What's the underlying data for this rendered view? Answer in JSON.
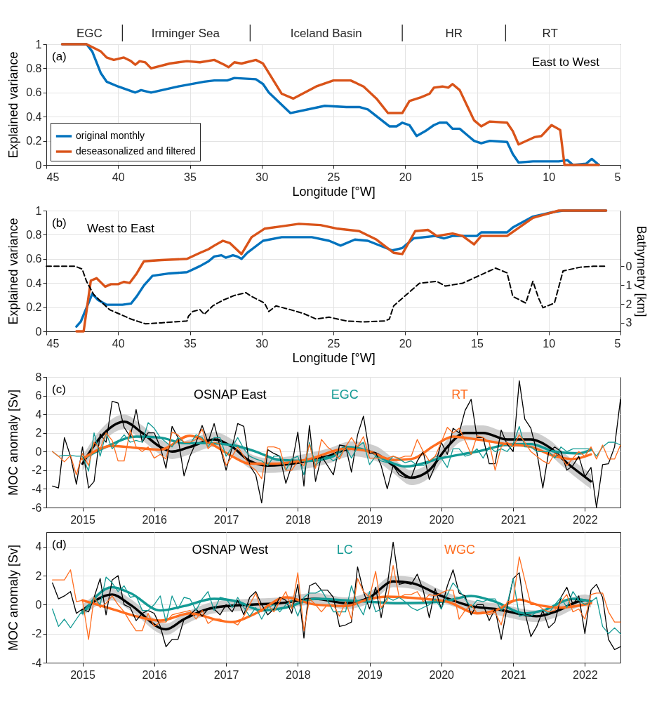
{
  "chart_data": [
    {
      "type": "line",
      "xlabel": "Longitude [°W]",
      "ylabel": "Explained variance",
      "xlim": [
        45,
        5
      ],
      "xticks": [
        45,
        40,
        35,
        30,
        25,
        20,
        15,
        10,
        5
      ],
      "ylim": [
        0,
        1
      ],
      "yticks": [
        0,
        0.2,
        0.4,
        0.6,
        0.8,
        1
      ],
      "grid": true,
      "legend": "bottom left",
      "annotations": [
        "(a)",
        "East to West",
        "EGC",
        "Irminger Sea",
        "Iceland Basin",
        "HR",
        "RT"
      ],
      "series": [
        {
          "name": "original monthly",
          "color": "#0072bd",
          "x": [
            43.9,
            42.2,
            41.8,
            41.2,
            40.8,
            40.0,
            38.8,
            38.4,
            37.7,
            35.8,
            34.0,
            33.3,
            32.4,
            31.9,
            30.4,
            29.9,
            29.5,
            28.0,
            25.6,
            24.1,
            23.2,
            22.6,
            21.1,
            20.6,
            20.2,
            19.7,
            19.2,
            18.6,
            18.0,
            17.6,
            17.1,
            16.7,
            16.2,
            15.6,
            15.2,
            14.7,
            14.1,
            12.9,
            12.5,
            12.1,
            11.1,
            9.9,
            9.3,
            8.7,
            8.3,
            7.4,
            7.0,
            6.5
          ],
          "values": [
            1.0,
            1.0,
            0.94,
            0.76,
            0.69,
            0.65,
            0.6,
            0.62,
            0.6,
            0.65,
            0.69,
            0.7,
            0.7,
            0.72,
            0.71,
            0.67,
            0.6,
            0.43,
            0.49,
            0.48,
            0.48,
            0.46,
            0.32,
            0.32,
            0.35,
            0.33,
            0.24,
            0.28,
            0.33,
            0.35,
            0.35,
            0.3,
            0.3,
            0.24,
            0.2,
            0.18,
            0.2,
            0.19,
            0.09,
            0.02,
            0.03,
            0.03,
            0.03,
            0.04,
            0.0,
            0.01,
            0.05,
            0.0
          ]
        },
        {
          "name": "deseasonalized and filtered",
          "color": "#d95319",
          "x": [
            43.9,
            42.2,
            41.2,
            40.8,
            40.3,
            39.6,
            39.1,
            38.8,
            38.5,
            38.1,
            37.7,
            36.4,
            35.2,
            34.3,
            33.3,
            32.6,
            32.3,
            31.9,
            31.4,
            30.4,
            29.9,
            28.6,
            27.8,
            26.2,
            25.0,
            23.8,
            22.9,
            22.0,
            21.2,
            20.2,
            19.7,
            18.9,
            18.3,
            18.0,
            17.4,
            17.0,
            16.7,
            16.2,
            15.6,
            15.2,
            14.7,
            14.1,
            12.9,
            12.5,
            12.1,
            11.0,
            10.5,
            9.8,
            9.2,
            8.9,
            6.5
          ],
          "values": [
            1.0,
            1.0,
            0.94,
            0.89,
            0.87,
            0.89,
            0.86,
            0.83,
            0.86,
            0.85,
            0.8,
            0.84,
            0.86,
            0.85,
            0.87,
            0.83,
            0.81,
            0.85,
            0.84,
            0.87,
            0.84,
            0.59,
            0.55,
            0.65,
            0.7,
            0.7,
            0.65,
            0.55,
            0.43,
            0.43,
            0.53,
            0.56,
            0.59,
            0.64,
            0.65,
            0.64,
            0.67,
            0.62,
            0.47,
            0.37,
            0.32,
            0.36,
            0.35,
            0.28,
            0.17,
            0.23,
            0.24,
            0.33,
            0.29,
            0.0,
            0.0
          ]
        }
      ]
    },
    {
      "type": "line",
      "xlabel": "Longitude [°W]",
      "ylabel": "Explained variance",
      "y2label": "Bathymetry [km]",
      "xlim": [
        45,
        5
      ],
      "xticks": [
        45,
        40,
        35,
        30,
        25,
        20,
        15,
        10,
        5
      ],
      "ylim": [
        0,
        1
      ],
      "yticks": [
        0,
        0.2,
        0.4,
        0.6,
        0.8,
        1
      ],
      "y2lim": [
        3.45,
        -2.95
      ],
      "y2ticks": [
        0,
        1,
        2,
        3
      ],
      "grid": true,
      "annotations": [
        "(b)",
        "West to East"
      ],
      "series": [
        {
          "color": "#0072bd",
          "x": [
            42.9,
            42.6,
            41.8,
            41.4,
            40.8,
            39.7,
            39.1,
            38.7,
            38.2,
            37.6,
            36.4,
            35.2,
            34.3,
            33.7,
            33.3,
            32.8,
            32.5,
            32.0,
            31.7,
            31.4,
            31.0,
            29.9,
            28.6,
            26.5,
            25.3,
            24.5,
            23.5,
            22.6,
            20.9,
            20.2,
            19.4,
            17.9,
            17.3,
            16.7,
            15.0,
            14.7,
            12.9,
            12.5,
            11.1,
            9.6,
            9.0,
            6.0
          ],
          "values": [
            0.04,
            0.08,
            0.31,
            0.26,
            0.22,
            0.22,
            0.23,
            0.29,
            0.38,
            0.46,
            0.48,
            0.49,
            0.54,
            0.58,
            0.62,
            0.63,
            0.61,
            0.63,
            0.62,
            0.6,
            0.65,
            0.75,
            0.78,
            0.78,
            0.75,
            0.71,
            0.76,
            0.75,
            0.67,
            0.69,
            0.77,
            0.79,
            0.77,
            0.79,
            0.79,
            0.82,
            0.82,
            0.86,
            0.95,
            0.99,
            1.0,
            1.0
          ]
        },
        {
          "color": "#d95319",
          "x": [
            42.9,
            42.4,
            41.9,
            41.5,
            40.9,
            40.5,
            40.0,
            39.6,
            39.2,
            38.7,
            38.2,
            37.0,
            35.2,
            34.3,
            33.7,
            33.3,
            32.7,
            32.2,
            31.4,
            30.7,
            29.8,
            28.6,
            27.4,
            25.9,
            24.7,
            23.2,
            22.0,
            20.8,
            20.2,
            19.3,
            18.4,
            17.8,
            16.7,
            16.0,
            15.2,
            14.7,
            12.9,
            11.1,
            9.3,
            6.0
          ],
          "values": [
            0.0,
            0.0,
            0.42,
            0.44,
            0.37,
            0.39,
            0.39,
            0.41,
            0.4,
            0.48,
            0.58,
            0.59,
            0.6,
            0.65,
            0.68,
            0.71,
            0.75,
            0.73,
            0.64,
            0.78,
            0.85,
            0.87,
            0.89,
            0.88,
            0.85,
            0.83,
            0.76,
            0.65,
            0.64,
            0.83,
            0.84,
            0.79,
            0.81,
            0.79,
            0.72,
            0.79,
            0.79,
            0.94,
            1.0,
            1.0
          ]
        },
        {
          "color": "#000000",
          "axis": "y2",
          "line_style": "dashed",
          "x": [
            45,
            43.0,
            42.5,
            42.2,
            41.7,
            40.6,
            39.1,
            38.1,
            37.0,
            35.2,
            35.1,
            34.8,
            34.3,
            34.0,
            33.4,
            32.7,
            31.9,
            31.1,
            30.7,
            29.8,
            29.5,
            29.0,
            28.0,
            27.1,
            26.2,
            25.3,
            24.1,
            22.9,
            21.4,
            21.1,
            20.8,
            19.9,
            19.0,
            17.8,
            17.2,
            16.0,
            14.7,
            13.7,
            12.9,
            12.5,
            11.6,
            11.1,
            10.7,
            10.4,
            9.6,
            9.0,
            7.8,
            6.9,
            6.0
          ],
          "values": [
            0.0,
            0.0,
            0.15,
            0.8,
            1.5,
            2.3,
            2.8,
            3.05,
            3.0,
            2.9,
            2.65,
            2.4,
            2.3,
            2.55,
            2.1,
            1.8,
            1.55,
            1.4,
            1.6,
            1.95,
            2.4,
            2.1,
            2.3,
            2.5,
            2.8,
            2.7,
            2.9,
            2.95,
            2.9,
            2.8,
            2.1,
            1.5,
            0.9,
            0.8,
            1.05,
            0.9,
            0.45,
            0.1,
            0.35,
            1.6,
            1.95,
            0.8,
            1.7,
            2.2,
            1.95,
            0.25,
            0.05,
            0.0,
            0.0
          ]
        }
      ]
    },
    {
      "type": "line",
      "ylabel": "MOC anomaly [Sv]",
      "xlim": [
        "2014-07",
        "2022-07"
      ],
      "xticks": [
        "2015",
        "2016",
        "2017",
        "2018",
        "2019",
        "2020",
        "2021",
        "2022"
      ],
      "ylim": [
        -6,
        8
      ],
      "yticks": [
        -6,
        -4,
        -2,
        0,
        2,
        4,
        6,
        8
      ],
      "grid": true,
      "annotations": [
        "(c)"
      ],
      "x": [
        "2014-08",
        "2014-09",
        "2014-10",
        "2014-11",
        "2014-12",
        "2015-01",
        "2015-02",
        "2015-03",
        "2015-04",
        "2015-05",
        "2015-06",
        "2015-07",
        "2015-08",
        "2015-09",
        "2015-10",
        "2015-11",
        "2015-12",
        "2016-01",
        "2016-02",
        "2016-03",
        "2016-04",
        "2016-05",
        "2016-06",
        "2016-07",
        "2016-08",
        "2016-09",
        "2016-10",
        "2016-11",
        "2016-12",
        "2017-01",
        "2017-02",
        "2017-03",
        "2017-04",
        "2017-05",
        "2017-06",
        "2017-07",
        "2017-08",
        "2017-09",
        "2017-10",
        "2017-11",
        "2017-12",
        "2018-01",
        "2018-02",
        "2018-03",
        "2018-04",
        "2018-05",
        "2018-06",
        "2018-07",
        "2018-08",
        "2018-09",
        "2018-10",
        "2018-11",
        "2018-12",
        "2019-01",
        "2019-02",
        "2019-03",
        "2019-04",
        "2019-05",
        "2019-06",
        "2019-07",
        "2019-08",
        "2019-09",
        "2019-10",
        "2019-11",
        "2019-12",
        "2020-01",
        "2020-02",
        "2020-03",
        "2020-04",
        "2020-05",
        "2020-06",
        "2020-07",
        "2020-08",
        "2020-09",
        "2020-10",
        "2020-11",
        "2020-12",
        "2021-01",
        "2021-02",
        "2021-03",
        "2021-04",
        "2021-05",
        "2021-06",
        "2021-07",
        "2021-08",
        "2021-09",
        "2021-10",
        "2021-11",
        "2021-12",
        "2022-01",
        "2022-02",
        "2022-03",
        "2022-04",
        "2022-05",
        "2022-06",
        "2022-07"
      ],
      "series": [
        {
          "name": "OSNAP East",
          "color": "#000000",
          "values": [
            -3.7,
            -3.9,
            1.5,
            -0.5,
            -3.5,
            0.5,
            -3.9,
            -3.2,
            1.9,
            1.0,
            5.4,
            5.2,
            2.6,
            1.6,
            4.5,
            1.0,
            2.0,
            2.0,
            0.5,
            -1.8,
            2.7,
            1.5,
            -2.6,
            -0.5,
            1.0,
            2.8,
            1.0,
            3.0,
            0.5,
            -2.0,
            0.5,
            3.0,
            2.7,
            -1.5,
            -2.5,
            -5.5,
            0.2,
            -0.2,
            -0.5,
            -3.4,
            -1.5,
            2.1,
            -3.7,
            2.8,
            -3.2,
            -0.5,
            -1.5,
            -2.5,
            0.7,
            0.6,
            -2.2,
            1.8,
            3.8,
            -0.2,
            -0.1,
            -1.5,
            -4.0,
            -1.5,
            -2.5,
            -2.8,
            -2.8,
            -1.0,
            0.0,
            -3.0,
            -1.5,
            1.0,
            -0.3,
            2.5,
            2.0,
            4.4,
            5.6,
            1.5,
            1.5,
            -1.3,
            -1.3,
            2.3,
            0.8,
            0.0,
            7.6,
            3.5,
            2.5,
            0.0,
            -3.9,
            0.0,
            0.5,
            0.0,
            -2.0,
            -1.5,
            -0.5,
            -2.7,
            -1.7,
            -6.0,
            -1.4,
            -1.3,
            0.5,
            5.6
          ]
        },
        {
          "name": "EGC",
          "color": "#139a94",
          "values": [
            0.0,
            -0.5,
            -0.4,
            -0.4,
            -0.5,
            -0.5,
            -2.1,
            2.0,
            -0.5,
            2.0,
            0.3,
            1.0,
            1.8,
            1.0,
            1.2,
            1.0,
            3.1,
            2.5,
            1.5,
            1.0,
            0.5,
            1.5,
            1.0,
            0.8,
            1.8,
            1.5,
            0.5,
            1.5,
            1.5,
            -0.5,
            0.5,
            1.5,
            0.3,
            -0.5,
            -0.8,
            -1.0,
            -1.5,
            -0.5,
            -0.5,
            -2.0,
            -0.8,
            -0.5,
            -2.5,
            1.0,
            -1.5,
            -0.8,
            -0.5,
            -1.0,
            -0.5,
            0.5,
            -0.7,
            0.5,
            1.0,
            -1.4,
            -0.5,
            -1.0,
            -1.2,
            -0.5,
            -0.8,
            -1.2,
            -1.0,
            -1.5,
            -1.5,
            -1.2,
            -0.5,
            -0.7,
            -1.7,
            0.3,
            0.3,
            -0.5,
            -0.3,
            0.3,
            -0.7,
            0.5,
            0.0,
            0.3,
            0.0,
            0.8,
            2.7,
            0.5,
            0.5,
            0.0,
            0.0,
            0.0,
            -0.7,
            0.5,
            0.0,
            0.3,
            0.3,
            0.3,
            0.3,
            -0.5,
            0.5,
            1.0,
            1.0,
            0.7
          ]
        },
        {
          "name": "RT",
          "color": "#ff6d1f",
          "values": [
            0.0,
            -0.5,
            -1.1,
            -0.4,
            -2.5,
            -0.2,
            -1.5,
            1.0,
            0.3,
            2.0,
            1.2,
            -1.0,
            -1.0,
            2.3,
            0.5,
            0.0,
            0.5,
            -0.7,
            -0.3,
            -0.8,
            2.1,
            1.8,
            1.0,
            1.0,
            1.3,
            2.4,
            0.3,
            1.0,
            0.8,
            -1.5,
            -0.5,
            0.5,
            -0.5,
            -1.5,
            -2.0,
            -2.9,
            0.5,
            0.5,
            0.3,
            -2.0,
            -2.0,
            -1.0,
            -1.5,
            0.8,
            -1.8,
            1.3,
            0.5,
            0.0,
            -0.8,
            0.5,
            1.5,
            0.5,
            1.6,
            -0.7,
            -0.7,
            -0.7,
            -0.7,
            -0.5,
            -0.7,
            -0.5,
            -0.5,
            1.3,
            0.0,
            -1.0,
            -0.5,
            1.0,
            2.6,
            2.0,
            2.5,
            1.2,
            -0.3,
            1.7,
            1.5,
            1.0,
            -2.0,
            0.5,
            1.0,
            0.5,
            1.8,
            1.0,
            0.0,
            -0.5,
            -1.0,
            -1.3,
            -0.2,
            -0.5,
            -1.5,
            -0.7,
            0.0,
            -0.5,
            0.5,
            -0.8,
            0.7,
            -0.8,
            -0.8,
            0.7
          ]
        },
        {
          "color": "#000000",
          "x": [
            "2015-01",
            "2015-04",
            "2015-08",
            "2015-11",
            "2016-02",
            "2016-04",
            "2016-07",
            "2016-11",
            "2017-02",
            "2017-05",
            "2017-08",
            "2018-01",
            "2018-06",
            "2018-10",
            "2019-02",
            "2019-05",
            "2019-08",
            "2019-11",
            "2020-02",
            "2020-05",
            "2020-08",
            "2020-12",
            "2021-04",
            "2021-07",
            "2021-10",
            "2022-02"
          ],
          "values": [
            -1.3,
            1.5,
            3.2,
            2.0,
            0.5,
            0.0,
            0.5,
            1.3,
            0.5,
            -1.0,
            -1.5,
            -1.2,
            -0.5,
            0.3,
            -0.2,
            -1.5,
            -2.8,
            -2.0,
            0.5,
            2.0,
            2.0,
            1.3,
            1.3,
            0.5,
            -1.2,
            -3.2
          ],
          "lower": [
            -2.1,
            0.7,
            2.4,
            1.2,
            -0.3,
            -0.8,
            -0.3,
            0.5,
            -0.3,
            -1.8,
            -2.3,
            -2.0,
            -1.3,
            -0.5,
            -1.0,
            -2.3,
            -3.6,
            -2.8,
            -0.3,
            1.2,
            1.2,
            0.5,
            0.5,
            -0.3,
            -2.0,
            -4.0
          ],
          "upper": [
            -0.5,
            2.3,
            4.0,
            2.8,
            1.3,
            0.8,
            1.3,
            2.1,
            1.3,
            -0.2,
            -0.7,
            -0.4,
            0.3,
            1.1,
            0.6,
            -0.7,
            -2.0,
            -1.2,
            1.3,
            2.8,
            2.8,
            2.1,
            2.1,
            1.3,
            -0.4,
            -2.4
          ]
        },
        {
          "color": "#139a94",
          "x": [
            "2015-01",
            "2015-05",
            "2015-10",
            "2016-02",
            "2016-06",
            "2016-10",
            "2017-02",
            "2017-06",
            "2017-10",
            "2018-03",
            "2018-07",
            "2018-09",
            "2019-01",
            "2019-04",
            "2019-07",
            "2020-01",
            "2020-07",
            "2021-01",
            "2021-04",
            "2021-08",
            "2021-12",
            "2022-02"
          ],
          "values": [
            -0.8,
            0.5,
            1.6,
            1.5,
            0.9,
            0.9,
            0.7,
            0.0,
            -0.9,
            -1.0,
            -0.5,
            0.5,
            0.0,
            -1.0,
            -1.6,
            -0.7,
            0.0,
            0.8,
            0.8,
            0.0,
            -0.2,
            0.2
          ]
        },
        {
          "color": "#ff6d1f",
          "x": [
            "2015-01",
            "2015-06",
            "2015-10",
            "2016-02",
            "2016-07",
            "2016-10",
            "2017-02",
            "2017-05",
            "2017-09",
            "2018-03",
            "2018-09",
            "2019-01",
            "2019-05",
            "2019-08",
            "2019-12",
            "2020-03",
            "2020-07",
            "2020-12",
            "2021-04",
            "2021-08",
            "2021-11",
            "2022-02"
          ],
          "values": [
            -0.8,
            0.6,
            0.4,
            0.2,
            1.7,
            1.0,
            -0.5,
            -1.3,
            -1.3,
            -0.8,
            0.3,
            0.0,
            -0.9,
            -0.8,
            0.7,
            1.6,
            1.3,
            0.8,
            0.5,
            -0.5,
            -0.8,
            -0.3
          ]
        }
      ]
    },
    {
      "type": "line",
      "ylabel": "MOC anomaly [Sv]",
      "xlim": [
        "2014-07",
        "2022-07"
      ],
      "xticks": [
        "2015",
        "2016",
        "2017",
        "2018",
        "2019",
        "2020",
        "2021",
        "2022"
      ],
      "ylim": [
        -4,
        5
      ],
      "yticks": [
        -4,
        -2,
        0,
        2,
        4
      ],
      "grid": true,
      "annotations": [
        "(d)"
      ],
      "x": [
        "2014-08",
        "2014-09",
        "2014-10",
        "2014-11",
        "2014-12",
        "2015-01",
        "2015-02",
        "2015-03",
        "2015-04",
        "2015-05",
        "2015-06",
        "2015-07",
        "2015-08",
        "2015-09",
        "2015-10",
        "2015-11",
        "2015-12",
        "2016-01",
        "2016-02",
        "2016-03",
        "2016-04",
        "2016-05",
        "2016-06",
        "2016-07",
        "2016-08",
        "2016-09",
        "2016-10",
        "2016-11",
        "2016-12",
        "2017-01",
        "2017-02",
        "2017-03",
        "2017-04",
        "2017-05",
        "2017-06",
        "2017-07",
        "2017-08",
        "2017-09",
        "2017-10",
        "2017-11",
        "2017-12",
        "2018-01",
        "2018-02",
        "2018-03",
        "2018-04",
        "2018-05",
        "2018-06",
        "2018-07",
        "2018-08",
        "2018-09",
        "2018-10",
        "2018-11",
        "2018-12",
        "2019-01",
        "2019-02",
        "2019-03",
        "2019-04",
        "2019-05",
        "2019-06",
        "2019-07",
        "2019-08",
        "2019-09",
        "2019-10",
        "2019-11",
        "2019-12",
        "2020-01",
        "2020-02",
        "2020-03",
        "2020-04",
        "2020-05",
        "2020-06",
        "2020-07",
        "2020-08",
        "2020-09",
        "2020-10",
        "2020-11",
        "2020-12",
        "2021-01",
        "2021-02",
        "2021-03",
        "2021-04",
        "2021-05",
        "2021-06",
        "2021-07",
        "2021-08",
        "2021-09",
        "2021-10",
        "2021-11",
        "2021-12",
        "2022-01",
        "2022-02",
        "2022-03",
        "2022-04",
        "2022-05",
        "2022-06",
        "2022-07"
      ],
      "series": [
        {
          "name": "OSNAP West",
          "color": "#000000",
          "values": [
            1.5,
            0.4,
            0.6,
            0.9,
            -0.6,
            -0.3,
            -0.5,
            0.5,
            1.8,
            -0.7,
            1.7,
            2.0,
            0.0,
            -0.2,
            -1.1,
            -0.6,
            -0.4,
            -0.6,
            -1.5,
            -2.9,
            -2.4,
            -2.4,
            -1.0,
            -0.7,
            -0.3,
            -0.8,
            -0.3,
            -0.3,
            -0.7,
            0.0,
            -0.5,
            0.3,
            -0.7,
            0.5,
            0.9,
            0.0,
            -0.7,
            -0.3,
            0.5,
            0.3,
            -0.6,
            1.4,
            -2.3,
            1.3,
            1.5,
            1.0,
            1.0,
            0.5,
            -1.5,
            -1.4,
            -1.2,
            2.6,
            0.9,
            -0.3,
            1.2,
            -0.9,
            1.3,
            4.3,
            1.4,
            1.5,
            1.4,
            2.1,
            1.0,
            -0.9,
            1.1,
            -0.3,
            1.3,
            2.4,
            0.8,
            0.6,
            -0.7,
            0.0,
            0.0,
            -1.1,
            -0.3,
            -2.4,
            -0.2,
            1.8,
            2.2,
            -0.5,
            -2.2,
            -1.5,
            -0.4,
            -1.6,
            -1.2,
            0.5,
            1.2,
            0.0,
            0.6,
            -2.0,
            1.0,
            1.4,
            0.5,
            -2.4,
            -3.1,
            -2.9
          ]
        },
        {
          "name": "LC",
          "color": "#139a94",
          "values": [
            -0.3,
            -1.5,
            -1.0,
            -1.6,
            -1.0,
            -0.4,
            -0.3,
            0.5,
            0.0,
            1.9,
            1.5,
            0.9,
            1.3,
            0.5,
            0.6,
            -0.4,
            -0.4,
            0.0,
            0.6,
            -1.2,
            0.6,
            -0.3,
            0.5,
            0.4,
            -0.4,
            0.4,
            0.9,
            -0.4,
            0.5,
            0.4,
            -0.2,
            0.5,
            -0.2,
            -0.8,
            -0.2,
            -1.0,
            -0.2,
            0.0,
            -0.5,
            0.0,
            0.3,
            -0.8,
            0.5,
            0.8,
            0.8,
            1.0,
            0.3,
            -0.5,
            -0.5,
            -0.5,
            1.3,
            0.0,
            -0.7,
            0.9,
            -0.5,
            -0.3,
            0.5,
            0.3,
            0.5,
            0.2,
            -0.2,
            -0.4,
            -0.2,
            0.0,
            0.4,
            -0.3,
            0.7,
            1.5,
            1.0,
            0.4,
            -0.2,
            0.3,
            0.2,
            0.4,
            0.4,
            -0.4,
            0.0,
            1.8,
            -0.8,
            -0.7,
            -0.8,
            -0.5,
            -0.4,
            -0.6,
            0.0,
            0.5,
            -0.2,
            0.9,
            0.3,
            0.0,
            0.2,
            0.5,
            -1.5,
            -2.0,
            -1.6,
            -2.0
          ]
        },
        {
          "name": "WGC",
          "color": "#ff6d1f",
          "values": [
            1.7,
            1.7,
            1.7,
            2.4,
            0.2,
            0.3,
            -2.4,
            0.5,
            -0.2,
            0.1,
            0.6,
            0.0,
            -0.5,
            -1.2,
            -1.8,
            -1.8,
            -0.6,
            -1.5,
            -1.2,
            -1.2,
            -0.7,
            -0.6,
            -0.5,
            -0.4,
            -1.0,
            -0.4,
            -1.3,
            -1.0,
            -1.0,
            -1.2,
            -1.2,
            -1.4,
            -0.8,
            0.0,
            0.8,
            -0.5,
            0.0,
            -0.5,
            0.2,
            0.9,
            -0.3,
            2.2,
            -1.8,
            0.4,
            0.0,
            -0.5,
            0.0,
            0.0,
            -0.8,
            0.2,
            -1.0,
            1.8,
            0.9,
            0.5,
            2.3,
            -0.2,
            0.3,
            2.7,
            0.5,
            0.7,
            0.7,
            0.9,
            0.2,
            0.7,
            0.6,
            0.8,
            1.0,
            1.0,
            -1.0,
            -0.4,
            0.0,
            -0.6,
            -0.5,
            -0.7,
            -0.5,
            -1.4,
            0.2,
            0.3,
            3.3,
            1.7,
            0.0,
            0.0,
            -0.3,
            -0.5,
            -0.4,
            0.2,
            0.7,
            -0.5,
            -0.3,
            -1.0,
            0.7,
            0.8,
            0.8,
            -0.5,
            -1.2,
            -1.2
          ]
        },
        {
          "color": "#000000",
          "x": [
            "2015-01",
            "2015-06",
            "2015-09",
            "2016-03",
            "2016-06",
            "2016-11",
            "2017-05",
            "2017-10",
            "2018-04",
            "2018-09",
            "2019-01",
            "2019-05",
            "2019-08",
            "2020-01",
            "2020-06",
            "2020-10",
            "2021-05",
            "2021-08",
            "2022-01",
            "2022-02"
          ],
          "values": [
            -0.4,
            0.7,
            0.0,
            -1.7,
            -1.0,
            -0.2,
            0.0,
            0.1,
            0.4,
            0.1,
            0.5,
            1.6,
            1.5,
            0.6,
            -0.1,
            -0.3,
            -0.8,
            -0.5,
            0.3,
            0.2
          ],
          "lower": [
            -0.8,
            0.3,
            -0.4,
            -2.1,
            -1.4,
            -0.6,
            -0.4,
            -0.3,
            0.0,
            -0.3,
            0.1,
            1.2,
            1.1,
            0.2,
            -0.5,
            -0.7,
            -1.2,
            -0.9,
            -0.1,
            -0.2
          ],
          "upper": [
            0.0,
            1.1,
            0.4,
            -1.3,
            -0.6,
            0.2,
            0.4,
            0.5,
            0.8,
            0.5,
            0.9,
            2.0,
            1.9,
            1.0,
            0.3,
            0.1,
            -0.4,
            -0.1,
            0.7,
            0.6
          ]
        },
        {
          "color": "#139a94",
          "x": [
            "2015-01",
            "2015-06",
            "2015-09",
            "2016-02",
            "2016-06",
            "2016-11",
            "2017-03",
            "2017-07",
            "2017-11",
            "2018-04",
            "2018-09",
            "2019-01",
            "2019-06",
            "2020-01",
            "2020-06",
            "2020-10",
            "2021-03",
            "2021-06",
            "2021-11",
            "2022-02"
          ],
          "values": [
            -0.6,
            1.2,
            0.8,
            -0.4,
            -0.1,
            0.4,
            0.2,
            -0.4,
            -0.2,
            0.4,
            0.3,
            0.2,
            0.1,
            0.2,
            0.6,
            0.2,
            -0.6,
            -0.4,
            0.4,
            0.2
          ]
        },
        {
          "color": "#ff6d1f",
          "x": [
            "2015-01",
            "2015-06",
            "2015-10",
            "2016-02",
            "2016-07",
            "2016-12",
            "2017-02",
            "2017-06",
            "2017-11",
            "2018-04",
            "2018-09",
            "2019-01",
            "2019-04",
            "2019-10",
            "2020-02",
            "2020-07",
            "2020-10",
            "2021-02",
            "2021-05",
            "2021-09",
            "2022-02"
          ],
          "values": [
            0.3,
            -0.3,
            -0.8,
            -1.1,
            -0.6,
            -1.1,
            -1.2,
            -0.6,
            0.5,
            0.0,
            -0.1,
            0.4,
            0.55,
            0.4,
            0.2,
            -0.6,
            -0.4,
            0.35,
            0.0,
            -0.2,
            0.1
          ]
        }
      ]
    }
  ]
}
